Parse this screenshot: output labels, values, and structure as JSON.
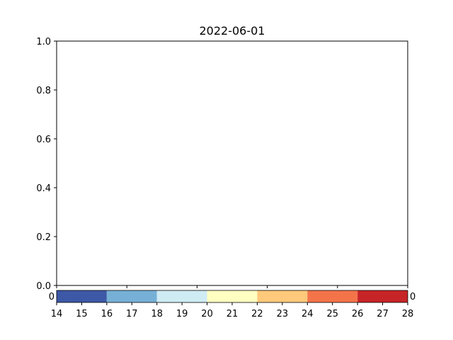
{
  "chart_data": {
    "type": "heatmap",
    "title": "2022-06-01",
    "xlabel": "",
    "ylabel": "",
    "ylim": [
      0.0,
      1.0
    ],
    "y_ticks": [
      "0.0",
      "0.2",
      "0.4",
      "0.6",
      "0.8",
      "1.0"
    ],
    "x_ticks_count": 6,
    "x_tick_labels": [],
    "series": [],
    "grid": false,
    "colorbar": {
      "orientation": "horizontal",
      "range": [
        14,
        28
      ],
      "ticks": [
        "14",
        "15",
        "16",
        "17",
        "18",
        "19",
        "20",
        "21",
        "22",
        "23",
        "24",
        "25",
        "26",
        "27",
        "28"
      ],
      "bins": [
        {
          "from": 14,
          "to": 16,
          "color": "#3c58a6"
        },
        {
          "from": 16,
          "to": 18,
          "color": "#77b0d6"
        },
        {
          "from": 18,
          "to": 20,
          "color": "#cfebf4"
        },
        {
          "from": 20,
          "to": 22,
          "color": "#ffffc2"
        },
        {
          "from": 22,
          "to": 24,
          "color": "#fec97a"
        },
        {
          "from": 24,
          "to": 26,
          "color": "#f4744a"
        },
        {
          "from": 26,
          "to": 28,
          "color": "#c72427"
        }
      ],
      "edge_labels": {
        "left": "0",
        "right": "0"
      }
    }
  }
}
